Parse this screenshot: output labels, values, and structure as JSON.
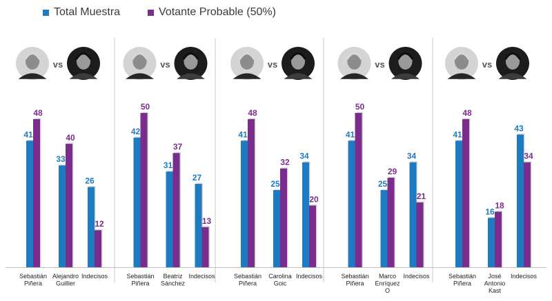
{
  "colors": {
    "total": "#1f7bc1",
    "votante": "#7b2d8e"
  },
  "legend": [
    {
      "label": "Total Muestra",
      "color": "#1f7bc1"
    },
    {
      "label": "Votante Probable (50%)",
      "color": "#7b2d8e"
    }
  ],
  "vs_label": "vs",
  "chart_data": {
    "type": "bar",
    "title": "",
    "legend_position": "top-left",
    "ylim": [
      0,
      60
    ],
    "series_names": [
      "Total Muestra",
      "Votante Probable (50%)"
    ],
    "panels": [
      {
        "opponent_icon": "alejandro-guillier-photo",
        "categories": [
          [
            "Sebastián",
            "Piñera"
          ],
          [
            "Alejandro",
            "Guillier"
          ],
          [
            "Indecisos"
          ]
        ],
        "total": [
          41,
          33,
          26
        ],
        "votante": [
          48,
          40,
          12
        ]
      },
      {
        "opponent_icon": "beatriz-sanchez-photo",
        "categories": [
          [
            "Sebastián",
            "Piñera"
          ],
          [
            "Beatriz",
            "Sánchez"
          ],
          [
            "Indecisos"
          ]
        ],
        "total": [
          42,
          31,
          27
        ],
        "votante": [
          50,
          37,
          13
        ]
      },
      {
        "opponent_icon": "carolina-goic-photo",
        "categories": [
          [
            "Sebastián",
            "Piñera"
          ],
          [
            "Carolina",
            "Goic"
          ],
          [
            "Indecisos"
          ]
        ],
        "total": [
          41,
          25,
          34
        ],
        "votante": [
          48,
          32,
          20
        ]
      },
      {
        "opponent_icon": "marco-enriquez-o-photo",
        "categories": [
          [
            "Sebastián",
            "Piñera"
          ],
          [
            "Marco",
            "Enríquez",
            "O"
          ],
          [
            "Indecisos"
          ]
        ],
        "total": [
          41,
          25,
          34
        ],
        "votante": [
          50,
          29,
          21
        ]
      },
      {
        "opponent_icon": "jose-antonio-kast-photo",
        "categories": [
          [
            "Sebastián",
            "Piñera"
          ],
          [
            "José",
            "Antonio",
            "Kast"
          ],
          [
            "Indecisos"
          ]
        ],
        "total": [
          41,
          16,
          43
        ],
        "votante": [
          48,
          18,
          34
        ]
      }
    ]
  }
}
